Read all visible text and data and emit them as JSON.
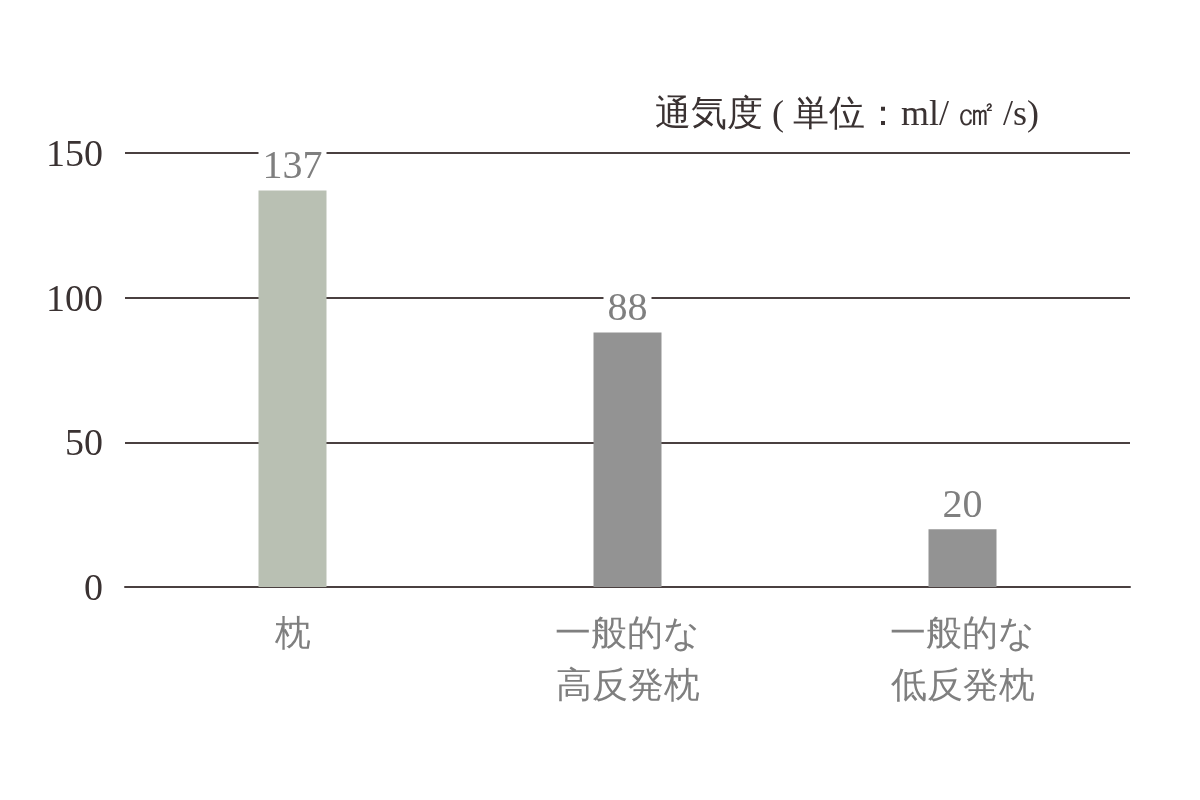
{
  "chart_data": {
    "type": "bar",
    "ylabel": "通気度 ( 単位：ml/ ㎠ /s)",
    "categories": [
      "枕",
      "一般的な高反発枕",
      "一般的な低反発枕"
    ],
    "values": [
      137,
      88,
      20
    ],
    "colors": [
      "#b9c0b3",
      "#939393",
      "#939393"
    ],
    "ylim": [
      0,
      150
    ],
    "yticks": [
      0,
      50,
      100,
      150
    ],
    "grid": "y",
    "data_labels": true
  }
}
